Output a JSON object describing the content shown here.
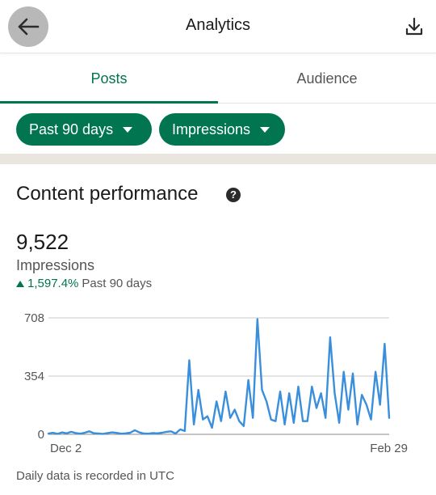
{
  "header": {
    "title": "Analytics",
    "back_icon": "arrow-left-icon",
    "download_icon": "download-icon"
  },
  "tabs": [
    {
      "label": "Posts",
      "active": true
    },
    {
      "label": "Audience",
      "active": false
    }
  ],
  "filters": {
    "range": "Past 90 days",
    "metric": "Impressions"
  },
  "section": {
    "title": "Content performance",
    "help_icon": "question-circle-icon",
    "value": "9,522",
    "metric": "Impressions",
    "change": "1,597.4%",
    "change_period": "Past 90 days",
    "footnote": "Daily data is recorded in UTC"
  },
  "colors": {
    "accent": "#01754f",
    "line": "#3a8fdc"
  },
  "chart_data": {
    "type": "line",
    "ylim": [
      0,
      708
    ],
    "yticks": [
      "708",
      "354",
      "0"
    ],
    "xtick_labels": [
      "Dec 2",
      "Feb 29"
    ],
    "values": [
      5,
      10,
      3,
      12,
      6,
      15,
      8,
      4,
      10,
      18,
      7,
      5,
      3,
      8,
      12,
      9,
      4,
      6,
      10,
      25,
      12,
      5,
      4,
      8,
      6,
      10,
      15,
      18,
      5,
      30,
      20,
      450,
      60,
      270,
      90,
      110,
      40,
      200,
      80,
      260,
      100,
      150,
      80,
      50,
      330,
      100,
      700,
      270,
      200,
      90,
      80,
      260,
      60,
      250,
      70,
      290,
      80,
      80,
      290,
      160,
      250,
      100,
      590,
      250,
      70,
      380,
      150,
      370,
      60,
      240,
      180,
      90,
      380,
      180,
      550,
      100
    ],
    "grid": true
  }
}
